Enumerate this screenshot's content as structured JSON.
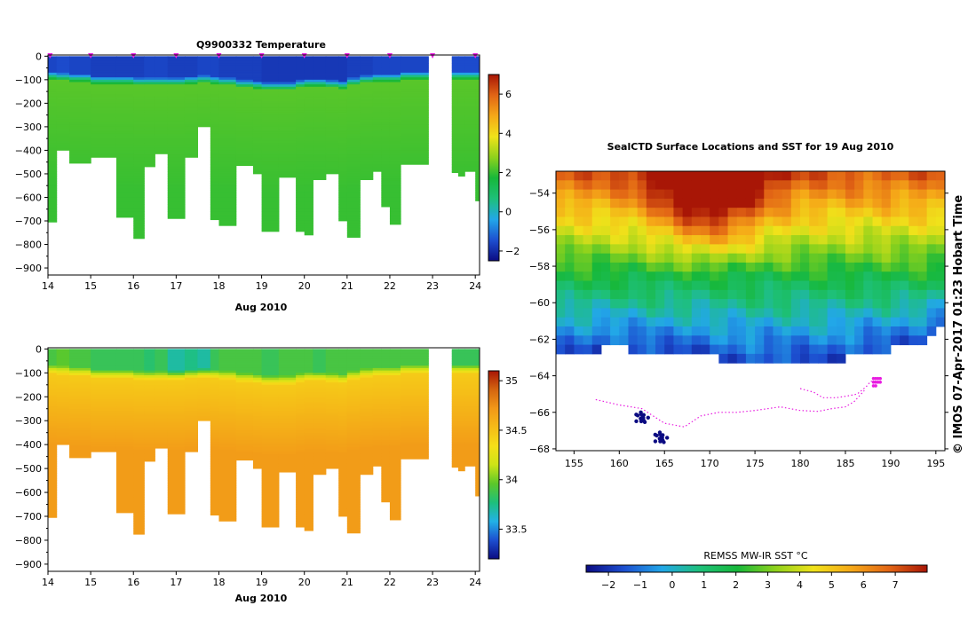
{
  "colors": {
    "temperature": [
      "#0b0b82",
      "#1d4fd0",
      "#22a7e8",
      "#1ec07a",
      "#17b83a",
      "#8fd21c",
      "#f0e21a",
      "#f5a818",
      "#e26515",
      "#a81606"
    ],
    "salinity": [
      "#0b0b82",
      "#1d4fd0",
      "#22b2e6",
      "#1ec07a",
      "#5cc82a",
      "#cde317",
      "#f5df18",
      "#f5bb18",
      "#f29818",
      "#d46510",
      "#a81606"
    ],
    "track": "#e81ce0",
    "land_mask": "#ffffff"
  },
  "chart_data": [
    {
      "id": "temperature-section",
      "type": "heatmap",
      "title": "Q9900332  Temperature",
      "xlabel": "Aug 2010",
      "ylabel": "",
      "xlim": [
        14,
        24.1
      ],
      "ylim": [
        -930,
        5
      ],
      "xticks": [
        14,
        15,
        16,
        17,
        18,
        19,
        20,
        21,
        22,
        23,
        24
      ],
      "yticks": [
        0,
        -100,
        -200,
        -300,
        -400,
        -500,
        -600,
        -700,
        -800,
        -900
      ],
      "colorbar": {
        "min": -2.5,
        "max": 7,
        "ticks": [
          -2,
          0,
          2,
          4,
          6
        ]
      },
      "profile_markers": [
        14.05,
        15.0,
        16.0,
        17.0,
        18.0,
        19.0,
        20.0,
        21.0,
        22.0,
        23.0,
        24.0
      ],
      "profiles": [
        {
          "x0": 14.0,
          "x1": 14.2,
          "depth": 705,
          "surf": -1.6,
          "mld": 75,
          "deep": 2.05
        },
        {
          "x0": 14.2,
          "x1": 14.5,
          "depth": 400,
          "surf": -1.5,
          "mld": 80,
          "deep": 2.05
        },
        {
          "x0": 14.5,
          "x1": 15.0,
          "depth": 455,
          "surf": -1.6,
          "mld": 85,
          "deep": 2.05
        },
        {
          "x0": 15.0,
          "x1": 15.6,
          "depth": 430,
          "surf": -1.7,
          "mld": 95,
          "deep": 2.05
        },
        {
          "x0": 15.6,
          "x1": 16.0,
          "depth": 685,
          "surf": -1.7,
          "mld": 95,
          "deep": 2.05
        },
        {
          "x0": 16.0,
          "x1": 16.25,
          "depth": 775,
          "surf": -1.7,
          "mld": 100,
          "deep": 2.05
        },
        {
          "x0": 16.25,
          "x1": 16.5,
          "depth": 470,
          "surf": -1.6,
          "mld": 100,
          "deep": 2.05
        },
        {
          "x0": 16.5,
          "x1": 16.8,
          "depth": 415,
          "surf": -1.6,
          "mld": 100,
          "deep": 2.05
        },
        {
          "x0": 16.8,
          "x1": 17.2,
          "depth": 690,
          "surf": -1.7,
          "mld": 100,
          "deep": 2.05
        },
        {
          "x0": 17.2,
          "x1": 17.5,
          "depth": 430,
          "surf": -1.7,
          "mld": 95,
          "deep": 2.05
        },
        {
          "x0": 17.5,
          "x1": 17.8,
          "depth": 300,
          "surf": -1.6,
          "mld": 90,
          "deep": 2.05
        },
        {
          "x0": 17.8,
          "x1": 18.0,
          "depth": 695,
          "surf": -1.6,
          "mld": 95,
          "deep": 2.05
        },
        {
          "x0": 18.0,
          "x1": 18.4,
          "depth": 720,
          "surf": -1.7,
          "mld": 100,
          "deep": 2.05
        },
        {
          "x0": 18.4,
          "x1": 18.8,
          "depth": 465,
          "surf": -1.7,
          "mld": 110,
          "deep": 2.05
        },
        {
          "x0": 18.8,
          "x1": 19.0,
          "depth": 500,
          "surf": -1.7,
          "mld": 115,
          "deep": 2.05
        },
        {
          "x0": 19.0,
          "x1": 19.4,
          "depth": 745,
          "surf": -1.8,
          "mld": 120,
          "deep": 2.05
        },
        {
          "x0": 19.4,
          "x1": 19.8,
          "depth": 515,
          "surf": -1.8,
          "mld": 120,
          "deep": 2.05
        },
        {
          "x0": 19.8,
          "x1": 20.0,
          "depth": 745,
          "surf": -1.8,
          "mld": 110,
          "deep": 2.05
        },
        {
          "x0": 20.0,
          "x1": 20.2,
          "depth": 760,
          "surf": -1.8,
          "mld": 105,
          "deep": 2.05
        },
        {
          "x0": 20.2,
          "x1": 20.5,
          "depth": 525,
          "surf": -1.8,
          "mld": 105,
          "deep": 2.05
        },
        {
          "x0": 20.5,
          "x1": 20.8,
          "depth": 500,
          "surf": -1.8,
          "mld": 110,
          "deep": 2.05
        },
        {
          "x0": 20.8,
          "x1": 21.0,
          "depth": 700,
          "surf": -1.8,
          "mld": 115,
          "deep": 2.05
        },
        {
          "x0": 21.0,
          "x1": 21.3,
          "depth": 770,
          "surf": -1.7,
          "mld": 100,
          "deep": 2.05
        },
        {
          "x0": 21.3,
          "x1": 21.6,
          "depth": 525,
          "surf": -1.7,
          "mld": 90,
          "deep": 2.05
        },
        {
          "x0": 21.6,
          "x1": 21.8,
          "depth": 490,
          "surf": -1.6,
          "mld": 85,
          "deep": 2.05
        },
        {
          "x0": 21.8,
          "x1": 22.0,
          "depth": 640,
          "surf": -1.6,
          "mld": 85,
          "deep": 2.05
        },
        {
          "x0": 22.0,
          "x1": 22.25,
          "depth": 715,
          "surf": -1.6,
          "mld": 85,
          "deep": 2.05
        },
        {
          "x0": 22.25,
          "x1": 22.9,
          "depth": 460,
          "surf": -1.6,
          "mld": 75,
          "deep": 2.05
        },
        {
          "x0": 23.45,
          "x1": 23.6,
          "depth": 495,
          "surf": -1.5,
          "mld": 75,
          "deep": 2.05
        },
        {
          "x0": 23.6,
          "x1": 23.75,
          "depth": 510,
          "surf": -1.5,
          "mld": 75,
          "deep": 2.05
        },
        {
          "x0": 23.75,
          "x1": 24.0,
          "depth": 490,
          "surf": -1.5,
          "mld": 75,
          "deep": 2.05
        },
        {
          "x0": 24.0,
          "x1": 24.1,
          "depth": 615,
          "surf": -1.5,
          "mld": 75,
          "deep": 2.05
        }
      ]
    },
    {
      "id": "salinity-section",
      "type": "heatmap",
      "title": "",
      "xlabel": "Aug 2010",
      "ylabel": "",
      "xlim": [
        14,
        24.1
      ],
      "ylim": [
        -930,
        5
      ],
      "xticks": [
        14,
        15,
        16,
        17,
        18,
        19,
        20,
        21,
        22,
        23,
        24
      ],
      "yticks": [
        0,
        -100,
        -200,
        -300,
        -400,
        -500,
        -600,
        -700,
        -800,
        -900
      ],
      "colorbar": {
        "min": 33.2,
        "max": 35.1,
        "ticks": [
          33.5,
          34,
          34.5,
          35
        ]
      },
      "surface_values": [
        33.9,
        33.95,
        33.9,
        33.85,
        33.85,
        33.85,
        33.8,
        33.85,
        33.7,
        33.75,
        33.7,
        33.85,
        33.9,
        33.9,
        33.9,
        33.85,
        33.9,
        33.9,
        33.9,
        33.85,
        33.9,
        33.9,
        33.9,
        33.9,
        33.9,
        33.9,
        33.9,
        33.9,
        33.85,
        33.85,
        33.85,
        33.85
      ],
      "mid_value": 34.45,
      "deep_value": 34.7
    },
    {
      "id": "sst-map",
      "type": "heatmap",
      "title": "SealCTD Surface Locations and SST for 19 Aug 2010",
      "xlabel": "",
      "ylabel": "",
      "xlim": [
        153,
        196
      ],
      "ylim": [
        -68.1,
        -52.8
      ],
      "xticks": [
        155,
        160,
        165,
        170,
        175,
        180,
        185,
        190,
        195
      ],
      "yticks": [
        -54,
        -56,
        -58,
        -60,
        -62,
        -64,
        -66,
        -68
      ],
      "ice_edge_lat": [
        [
          153,
          -63.0
        ],
        [
          156,
          -62.8
        ],
        [
          158,
          -62.5
        ],
        [
          160,
          -62.5
        ],
        [
          162,
          -62.6
        ],
        [
          164,
          -62.7
        ],
        [
          166,
          -62.8
        ],
        [
          168,
          -62.7
        ],
        [
          170,
          -62.9
        ],
        [
          172,
          -63.1
        ],
        [
          175,
          -63.3
        ],
        [
          177,
          -63.2
        ],
        [
          180,
          -63.2
        ],
        [
          183,
          -63.2
        ],
        [
          185,
          -63.0
        ],
        [
          187,
          -62.7
        ],
        [
          190,
          -62.6
        ],
        [
          193,
          -62.2
        ],
        [
          196,
          -61.4
        ]
      ],
      "colorbar": {
        "label": "REMSS MW-IR SST °C",
        "min": -2.7,
        "max": 8,
        "ticks": [
          -2,
          -1,
          0,
          1,
          2,
          3,
          4,
          5,
          6,
          7
        ]
      },
      "side_label": "© IMOS 07-Apr-2017 01:23 Hobart Time",
      "track": [
        [
          157.4,
          -65.3
        ],
        [
          160,
          -65.6
        ],
        [
          162.5,
          -65.8
        ],
        [
          165,
          -66.6
        ],
        [
          167.2,
          -66.8
        ],
        [
          169,
          -66.2
        ],
        [
          171,
          -66.0
        ],
        [
          173,
          -66.0
        ],
        [
          175,
          -65.9
        ],
        [
          177.8,
          -65.7
        ],
        [
          180,
          -65.9
        ],
        [
          182,
          -65.95
        ],
        [
          183.5,
          -65.8
        ],
        [
          185,
          -65.7
        ],
        [
          186,
          -65.4
        ],
        [
          187.1,
          -64.8
        ]
      ],
      "track_secondary": [
        [
          180,
          -64.7
        ],
        [
          181.5,
          -64.9
        ],
        [
          182.5,
          -65.2
        ],
        [
          184,
          -65.2
        ],
        [
          185.3,
          -65.1
        ],
        [
          186.3,
          -65.0
        ],
        [
          187.3,
          -64.6
        ],
        [
          187.8,
          -64.3
        ],
        [
          188.5,
          -64.3
        ]
      ],
      "blue_clusters": [
        [
          162.5,
          -66.3
        ],
        [
          164.6,
          -67.4
        ]
      ]
    }
  ]
}
